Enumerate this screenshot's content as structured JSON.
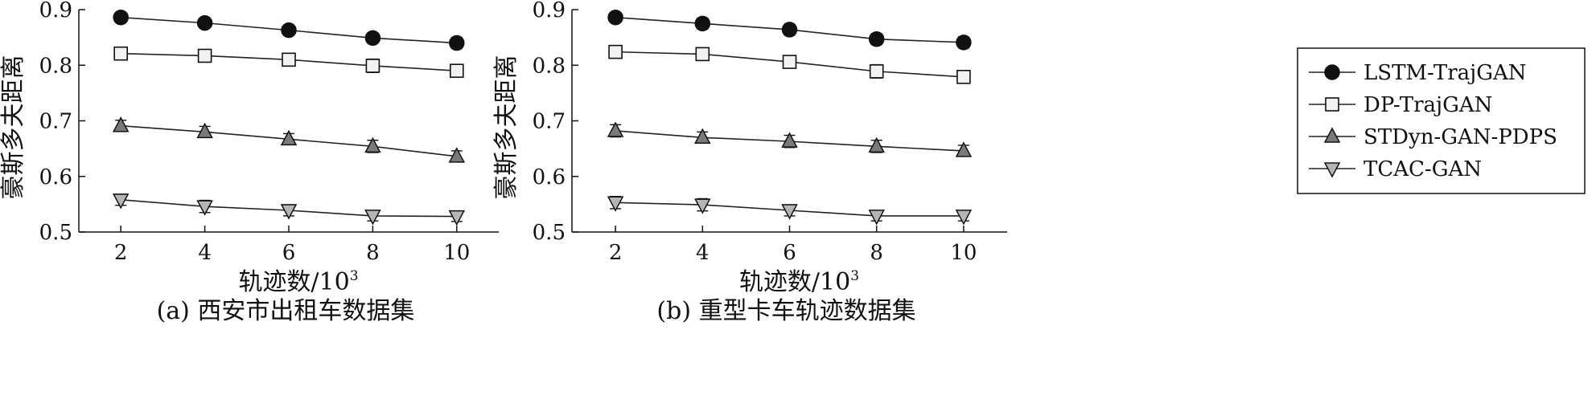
{
  "legend": {
    "entries": [
      {
        "label": "LSTM-TrajGAN",
        "marker": "circle"
      },
      {
        "label": "DP-TrajGAN",
        "marker": "square"
      },
      {
        "label": "STDyn-GAN-PDPS",
        "marker": "triangle-up"
      },
      {
        "label": "TCAC-GAN",
        "marker": "triangle-down"
      }
    ],
    "placement": "right"
  },
  "colors": {
    "LSTM-TrajGAN": "#111111",
    "DP-TrajGAN": "#f2f2f2",
    "STDyn-GAN-PDPS": "#7a7a7a",
    "TCAC-GAN": "#b5b5b5",
    "line": "#222222"
  },
  "chart_data": [
    {
      "type": "line",
      "caption": "(a) 西安市出租车数据集",
      "xlabel": "轨迹数/10",
      "xlabel_sup": "3",
      "ylabel": "豪斯多夫距离",
      "x": [
        2,
        4,
        6,
        8,
        10
      ],
      "xticks": [
        "2",
        "4",
        "6",
        "8",
        "10"
      ],
      "ylim": [
        0.5,
        0.9
      ],
      "yticks": [
        "0.5",
        "0.6",
        "0.7",
        "0.8",
        "0.9"
      ],
      "grid": false,
      "series": [
        {
          "name": "LSTM-TrajGAN",
          "values": [
            0.886,
            0.876,
            0.863,
            0.849,
            0.84
          ],
          "err": [
            0.008,
            0.009,
            0.009,
            0.009,
            0.01
          ]
        },
        {
          "name": "DP-TrajGAN",
          "values": [
            0.821,
            0.817,
            0.81,
            0.799,
            0.79
          ],
          "err": [
            0.009,
            0.01,
            0.01,
            0.012,
            0.011
          ]
        },
        {
          "name": "STDyn-GAN-PDPS",
          "values": [
            0.691,
            0.68,
            0.667,
            0.654,
            0.636
          ],
          "err": [
            0.01,
            0.01,
            0.01,
            0.011,
            0.01
          ]
        },
        {
          "name": "TCAC-GAN",
          "values": [
            0.558,
            0.546,
            0.539,
            0.529,
            0.528
          ],
          "err": [
            0.01,
            0.011,
            0.01,
            0.009,
            0.009
          ]
        }
      ]
    },
    {
      "type": "line",
      "caption": "(b) 重型卡车轨迹数据集",
      "xlabel": "轨迹数/10",
      "xlabel_sup": "3",
      "ylabel": "豪斯多夫距离",
      "x": [
        2,
        4,
        6,
        8,
        10
      ],
      "xticks": [
        "2",
        "4",
        "6",
        "8",
        "10"
      ],
      "ylim": [
        0.5,
        0.9
      ],
      "yticks": [
        "0.5",
        "0.6",
        "0.7",
        "0.8",
        "0.9"
      ],
      "grid": false,
      "series": [
        {
          "name": "LSTM-TrajGAN",
          "values": [
            0.886,
            0.875,
            0.864,
            0.847,
            0.841
          ],
          "err": [
            0.009,
            0.01,
            0.01,
            0.01,
            0.01
          ]
        },
        {
          "name": "DP-TrajGAN",
          "values": [
            0.824,
            0.82,
            0.806,
            0.789,
            0.779
          ],
          "err": [
            0.009,
            0.01,
            0.01,
            0.012,
            0.011
          ]
        },
        {
          "name": "STDyn-GAN-PDPS",
          "values": [
            0.682,
            0.67,
            0.663,
            0.654,
            0.646
          ],
          "err": [
            0.011,
            0.01,
            0.011,
            0.011,
            0.01
          ]
        },
        {
          "name": "TCAC-GAN",
          "values": [
            0.553,
            0.549,
            0.539,
            0.529,
            0.529
          ],
          "err": [
            0.011,
            0.011,
            0.01,
            0.009,
            0.009
          ]
        }
      ]
    }
  ]
}
